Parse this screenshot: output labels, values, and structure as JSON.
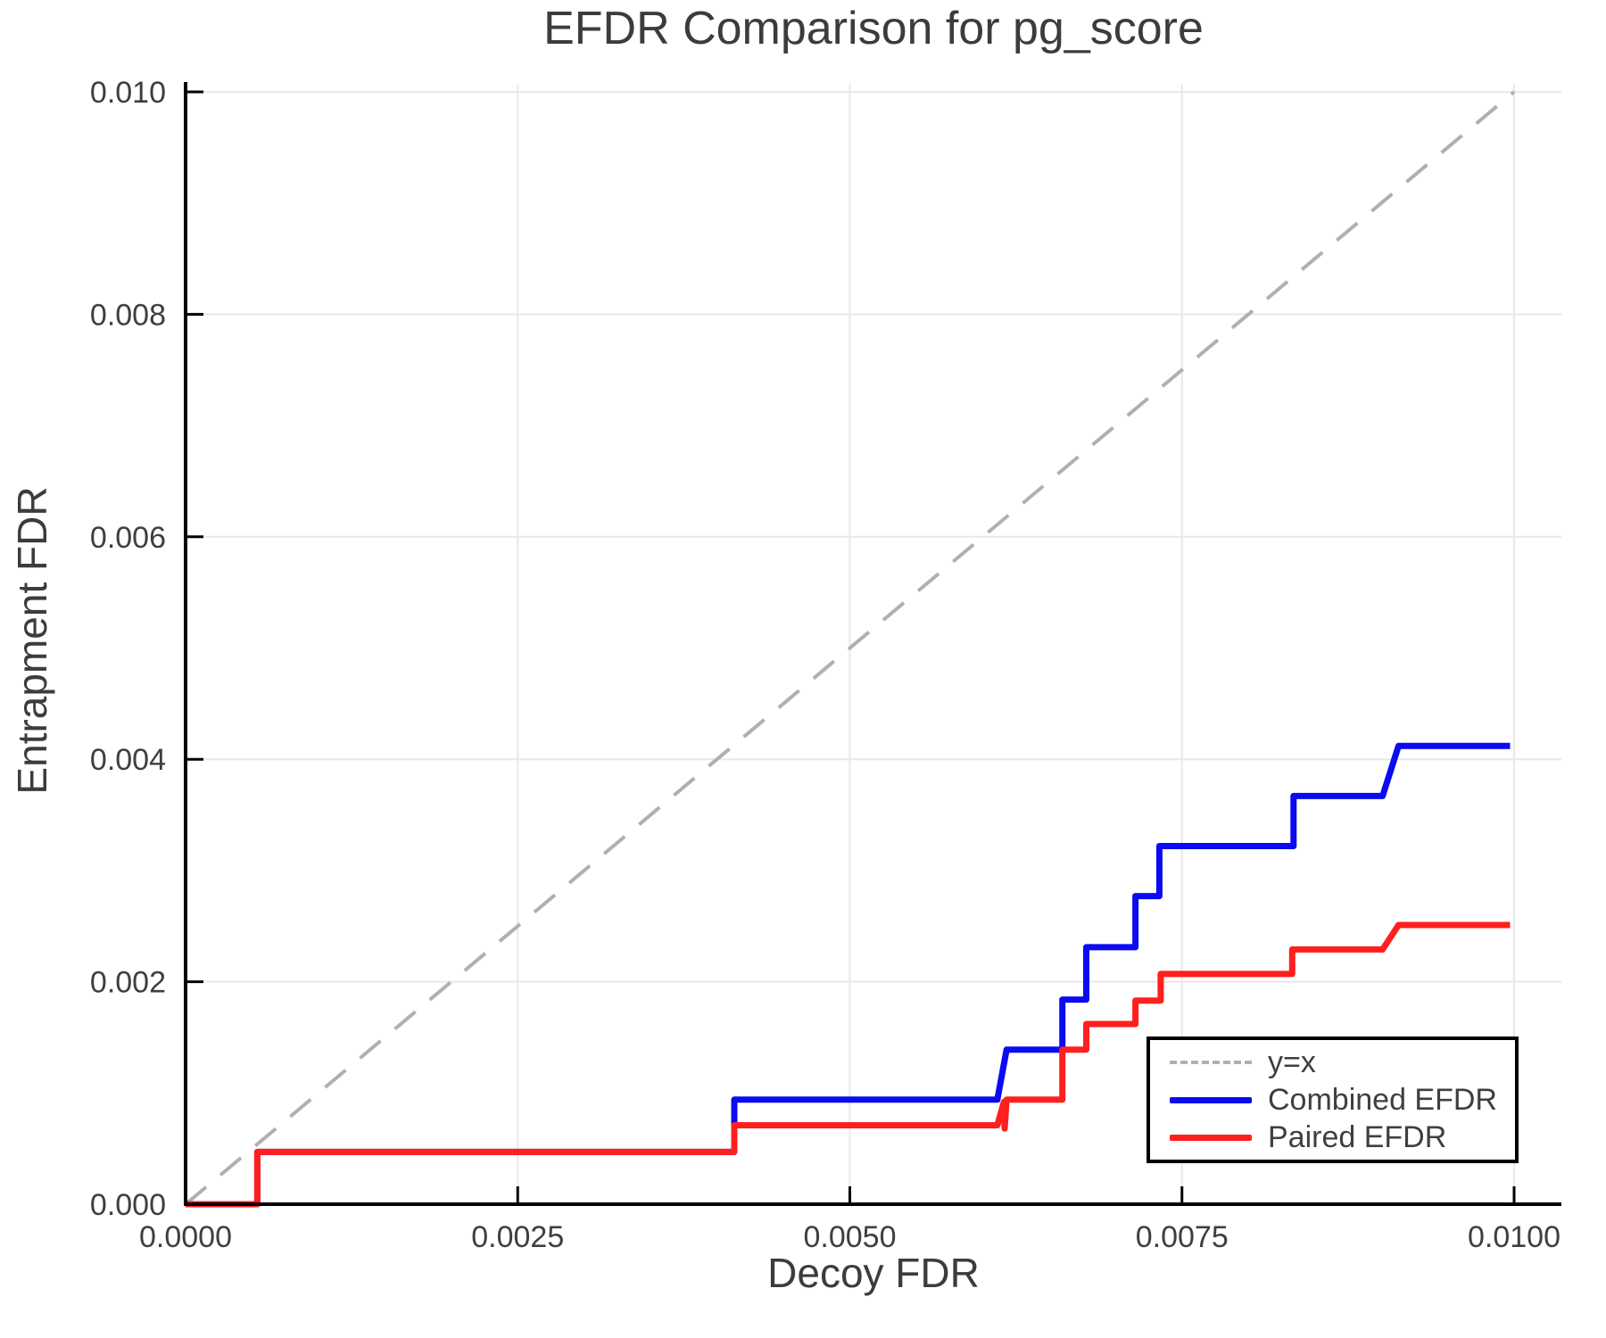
{
  "title": "EFDR Comparison for pg_score",
  "colors": {
    "combined": "#0b0bf2",
    "paired": "#ff1f1f",
    "identity": "#b0b0b0",
    "grid": "#e8e8e8",
    "axis": "#000000",
    "text": "#3f3f3f"
  },
  "chart_data": {
    "type": "line",
    "title": "EFDR Comparison for pg_score",
    "xlabel": "Decoy FDR",
    "ylabel": "Entrapment FDR",
    "xlim": [
      0,
      0.01
    ],
    "ylim": [
      0,
      0.01
    ],
    "grid": true,
    "legend_position": "bottom-right",
    "x_ticks": [
      0,
      0.0025,
      0.005,
      0.0075,
      0.01
    ],
    "x_tick_labels": [
      "0.0000",
      "0.0025",
      "0.0050",
      "0.0075",
      "0.0100"
    ],
    "y_ticks": [
      0,
      0.002,
      0.004,
      0.006,
      0.008,
      0.01
    ],
    "y_tick_labels": [
      "0.000",
      "0.002",
      "0.004",
      "0.006",
      "0.008",
      "0.010"
    ],
    "series": [
      {
        "name": "y=x",
        "style": "dashed",
        "color": "#b0b0b0",
        "points": [
          [
            0,
            0
          ],
          [
            0.01,
            0.01
          ]
        ]
      },
      {
        "name": "Combined EFDR",
        "style": "solid",
        "color": "#0b0bf2",
        "points": [
          [
            0,
            0
          ],
          [
            0.00054,
            0
          ],
          [
            0.00054,
            0.00047
          ],
          [
            0.00413,
            0.00047
          ],
          [
            0.00413,
            0.00094
          ],
          [
            0.00611,
            0.00094
          ],
          [
            0.00618,
            0.00139
          ],
          [
            0.0066,
            0.00139
          ],
          [
            0.0066,
            0.00184
          ],
          [
            0.00678,
            0.00184
          ],
          [
            0.00678,
            0.00231
          ],
          [
            0.00715,
            0.00231
          ],
          [
            0.00715,
            0.00277
          ],
          [
            0.00733,
            0.00277
          ],
          [
            0.00733,
            0.00322
          ],
          [
            0.00834,
            0.00322
          ],
          [
            0.00834,
            0.00367
          ],
          [
            0.00901,
            0.00367
          ],
          [
            0.00913,
            0.00412
          ],
          [
            0.00997,
            0.00412
          ]
        ]
      },
      {
        "name": "Paired EFDR",
        "style": "solid",
        "color": "#ff1f1f",
        "points": [
          [
            0,
            0
          ],
          [
            0.00054,
            0
          ],
          [
            0.00054,
            0.00047
          ],
          [
            0.00413,
            0.00047
          ],
          [
            0.00413,
            0.00071
          ],
          [
            0.00611,
            0.00071
          ],
          [
            0.00616,
            0.00092
          ],
          [
            0.006165,
            0.00068
          ],
          [
            0.00618,
            0.00094
          ],
          [
            0.0066,
            0.00094
          ],
          [
            0.0066,
            0.00139
          ],
          [
            0.00678,
            0.00139
          ],
          [
            0.00678,
            0.00162
          ],
          [
            0.00715,
            0.00162
          ],
          [
            0.00715,
            0.00183
          ],
          [
            0.00734,
            0.00183
          ],
          [
            0.00734,
            0.00207
          ],
          [
            0.00833,
            0.00207
          ],
          [
            0.00833,
            0.00229
          ],
          [
            0.00901,
            0.00229
          ],
          [
            0.00913,
            0.00251
          ],
          [
            0.00997,
            0.00251
          ]
        ]
      }
    ]
  }
}
